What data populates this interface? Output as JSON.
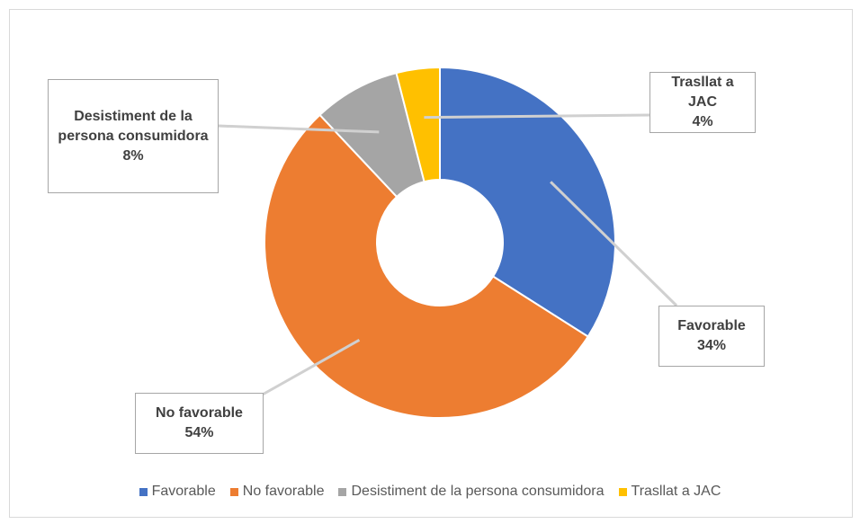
{
  "chart_data": {
    "type": "doughnut",
    "categories": [
      "Favorable",
      "No favorable",
      "Desistiment de la persona consumidora",
      "Trasllat a JAC"
    ],
    "values": [
      34,
      54,
      8,
      4
    ],
    "value_labels": [
      "34%",
      "54%",
      "8%",
      "4%"
    ],
    "colors": [
      "#4472c4",
      "#ed7d31",
      "#a5a5a5",
      "#ffc000"
    ],
    "legend": "bottom"
  }
}
